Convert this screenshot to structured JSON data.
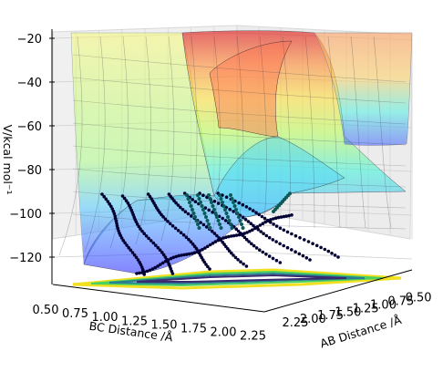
{
  "chart_data": {
    "type": "surface3d",
    "zlabel": "V/kcal mol⁻¹",
    "xlabel": "BC Distance /Å",
    "ylabel": "AB Distance /Å",
    "z_ticks": [
      "−20",
      "−40",
      "−60",
      "−80",
      "−100",
      "−120"
    ],
    "z_tick_values": [
      -20,
      -40,
      -60,
      -80,
      -100,
      -120
    ],
    "bc_ticks": [
      "0.50",
      "0.75",
      "1.00",
      "1.25",
      "1.50",
      "1.75",
      "2.00",
      "2.25"
    ],
    "bc_tick_values": [
      0.5,
      0.75,
      1.0,
      1.25,
      1.5,
      1.75,
      2.0,
      2.25
    ],
    "ab_ticks": [
      "2.25",
      "2.00",
      "1.75",
      "1.50",
      "1.25",
      "1.00",
      "0.75",
      "0.50"
    ],
    "ab_tick_values": [
      2.25,
      2.0,
      1.75,
      1.5,
      1.25,
      1.0,
      0.75,
      0.5
    ],
    "zlim": [
      -135,
      -18
    ],
    "xlim": [
      0.5,
      2.3
    ],
    "ylim": [
      0.5,
      2.3
    ],
    "surface_colormap": "jet",
    "contour_colormap": "viridis",
    "trajectory_color": "#000033",
    "grid": true,
    "trajectories": [
      {
        "start_bc": 0.8,
        "end_bc": 2.3
      },
      {
        "start_bc": 1.0,
        "end_bc": 2.3
      },
      {
        "start_bc": 1.2,
        "end_bc": 2.3
      },
      {
        "start_bc": 1.4,
        "end_bc": 2.3
      },
      {
        "start_bc": 1.6,
        "end_bc": 2.3
      }
    ]
  }
}
